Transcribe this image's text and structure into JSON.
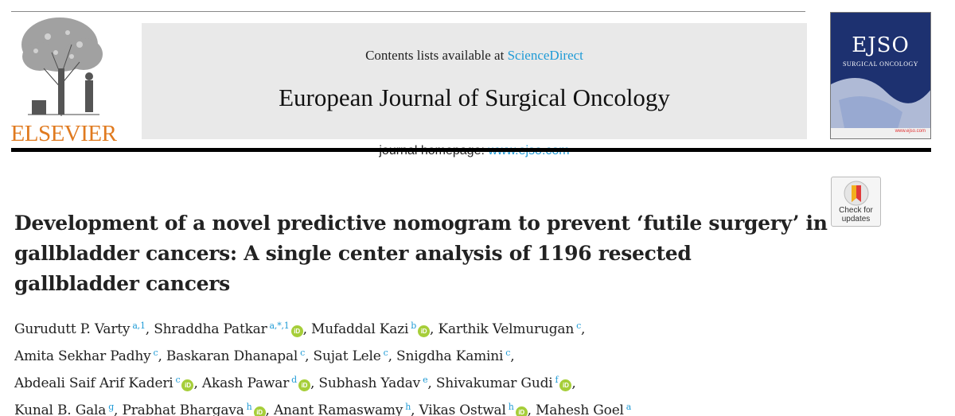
{
  "header": {
    "publisher_logo_text": "ELSEVIER",
    "contents_prefix": "Contents lists available at ",
    "contents_link": "ScienceDirect",
    "journal_title": "European Journal of Surgical Oncology",
    "homepage_prefix": "journal homepage: ",
    "homepage_link": "www.ejso.com",
    "cover": {
      "title": "EJSO",
      "subtitle": "SURGICAL ONCOLOGY",
      "url": "www.ejso.com"
    }
  },
  "badge": {
    "line1": "Check for",
    "line2": "updates"
  },
  "article": {
    "title_lines": [
      "Development of a novel predictive nomogram to prevent ‘futile surgery’ in",
      "gallbladder cancers: A single center analysis of 1196 resected",
      "gallbladder cancers"
    ]
  },
  "authors": [
    {
      "name": "Gurudutt P. Varty",
      "aff": "a,1",
      "orcid": false
    },
    {
      "name": "Shraddha Patkar",
      "aff": "a,*,1",
      "orcid": true
    },
    {
      "name": "Mufaddal Kazi",
      "aff": "b",
      "orcid": true
    },
    {
      "name": "Karthik Velmurugan",
      "aff": "c",
      "orcid": false
    },
    {
      "name": "Amita Sekhar Padhy",
      "aff": "c",
      "orcid": false
    },
    {
      "name": "Baskaran Dhanapal",
      "aff": "c",
      "orcid": false
    },
    {
      "name": "Sujat Lele",
      "aff": "c",
      "orcid": false
    },
    {
      "name": "Snigdha Kamini",
      "aff": "c",
      "orcid": false
    },
    {
      "name": "Abdeali Saif Arif Kaderi",
      "aff": "c",
      "orcid": true
    },
    {
      "name": "Akash Pawar",
      "aff": "d",
      "orcid": true
    },
    {
      "name": "Subhash Yadav",
      "aff": "e",
      "orcid": false
    },
    {
      "name": "Shivakumar Gudi",
      "aff": "f",
      "orcid": true
    },
    {
      "name": "Kunal B. Gala",
      "aff": "g",
      "orcid": false
    },
    {
      "name": "Prabhat Bhargava",
      "aff": "h",
      "orcid": true
    },
    {
      "name": "Anant Ramaswamy",
      "aff": "h",
      "orcid": false
    },
    {
      "name": "Vikas Ostwal",
      "aff": "h",
      "orcid": true
    },
    {
      "name": "Mahesh Goel",
      "aff": "a",
      "orcid": false
    }
  ],
  "colors": {
    "link": "#1f9bd6",
    "elsevier_orange": "#e07a1f",
    "orcid_green": "#a6ce39",
    "banner_bg": "#e9e9e9"
  }
}
